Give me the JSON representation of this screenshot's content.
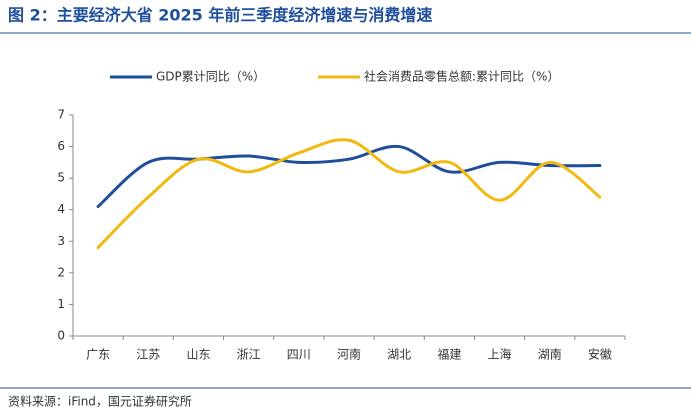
{
  "title": "图 2：主要经济大省 2025 年前三季度经济增速与消费增速",
  "source": "资料来源：iFind，国元证券研究所",
  "chart_data": {
    "type": "line",
    "legend": "top",
    "categories": [
      "广东",
      "江苏",
      "山东",
      "浙江",
      "四川",
      "河南",
      "湖北",
      "福建",
      "上海",
      "湖南",
      "安徽"
    ],
    "series": [
      {
        "name": "GDP累计同比（%）",
        "color": "#1f4e9c",
        "values": [
          4.1,
          5.5,
          5.6,
          5.7,
          5.5,
          5.6,
          6.0,
          5.2,
          5.5,
          5.4,
          5.4
        ]
      },
      {
        "name": "社会消费品零售总额:累计同比（%）",
        "color": "#f2b90f",
        "values": [
          2.8,
          4.4,
          5.6,
          5.2,
          5.8,
          6.2,
          5.2,
          5.5,
          4.3,
          5.5,
          4.4
        ]
      }
    ],
    "ylim": [
      0,
      7
    ],
    "yticks": [
      0,
      1,
      2,
      3,
      4,
      5,
      6,
      7
    ],
    "grid": false
  }
}
